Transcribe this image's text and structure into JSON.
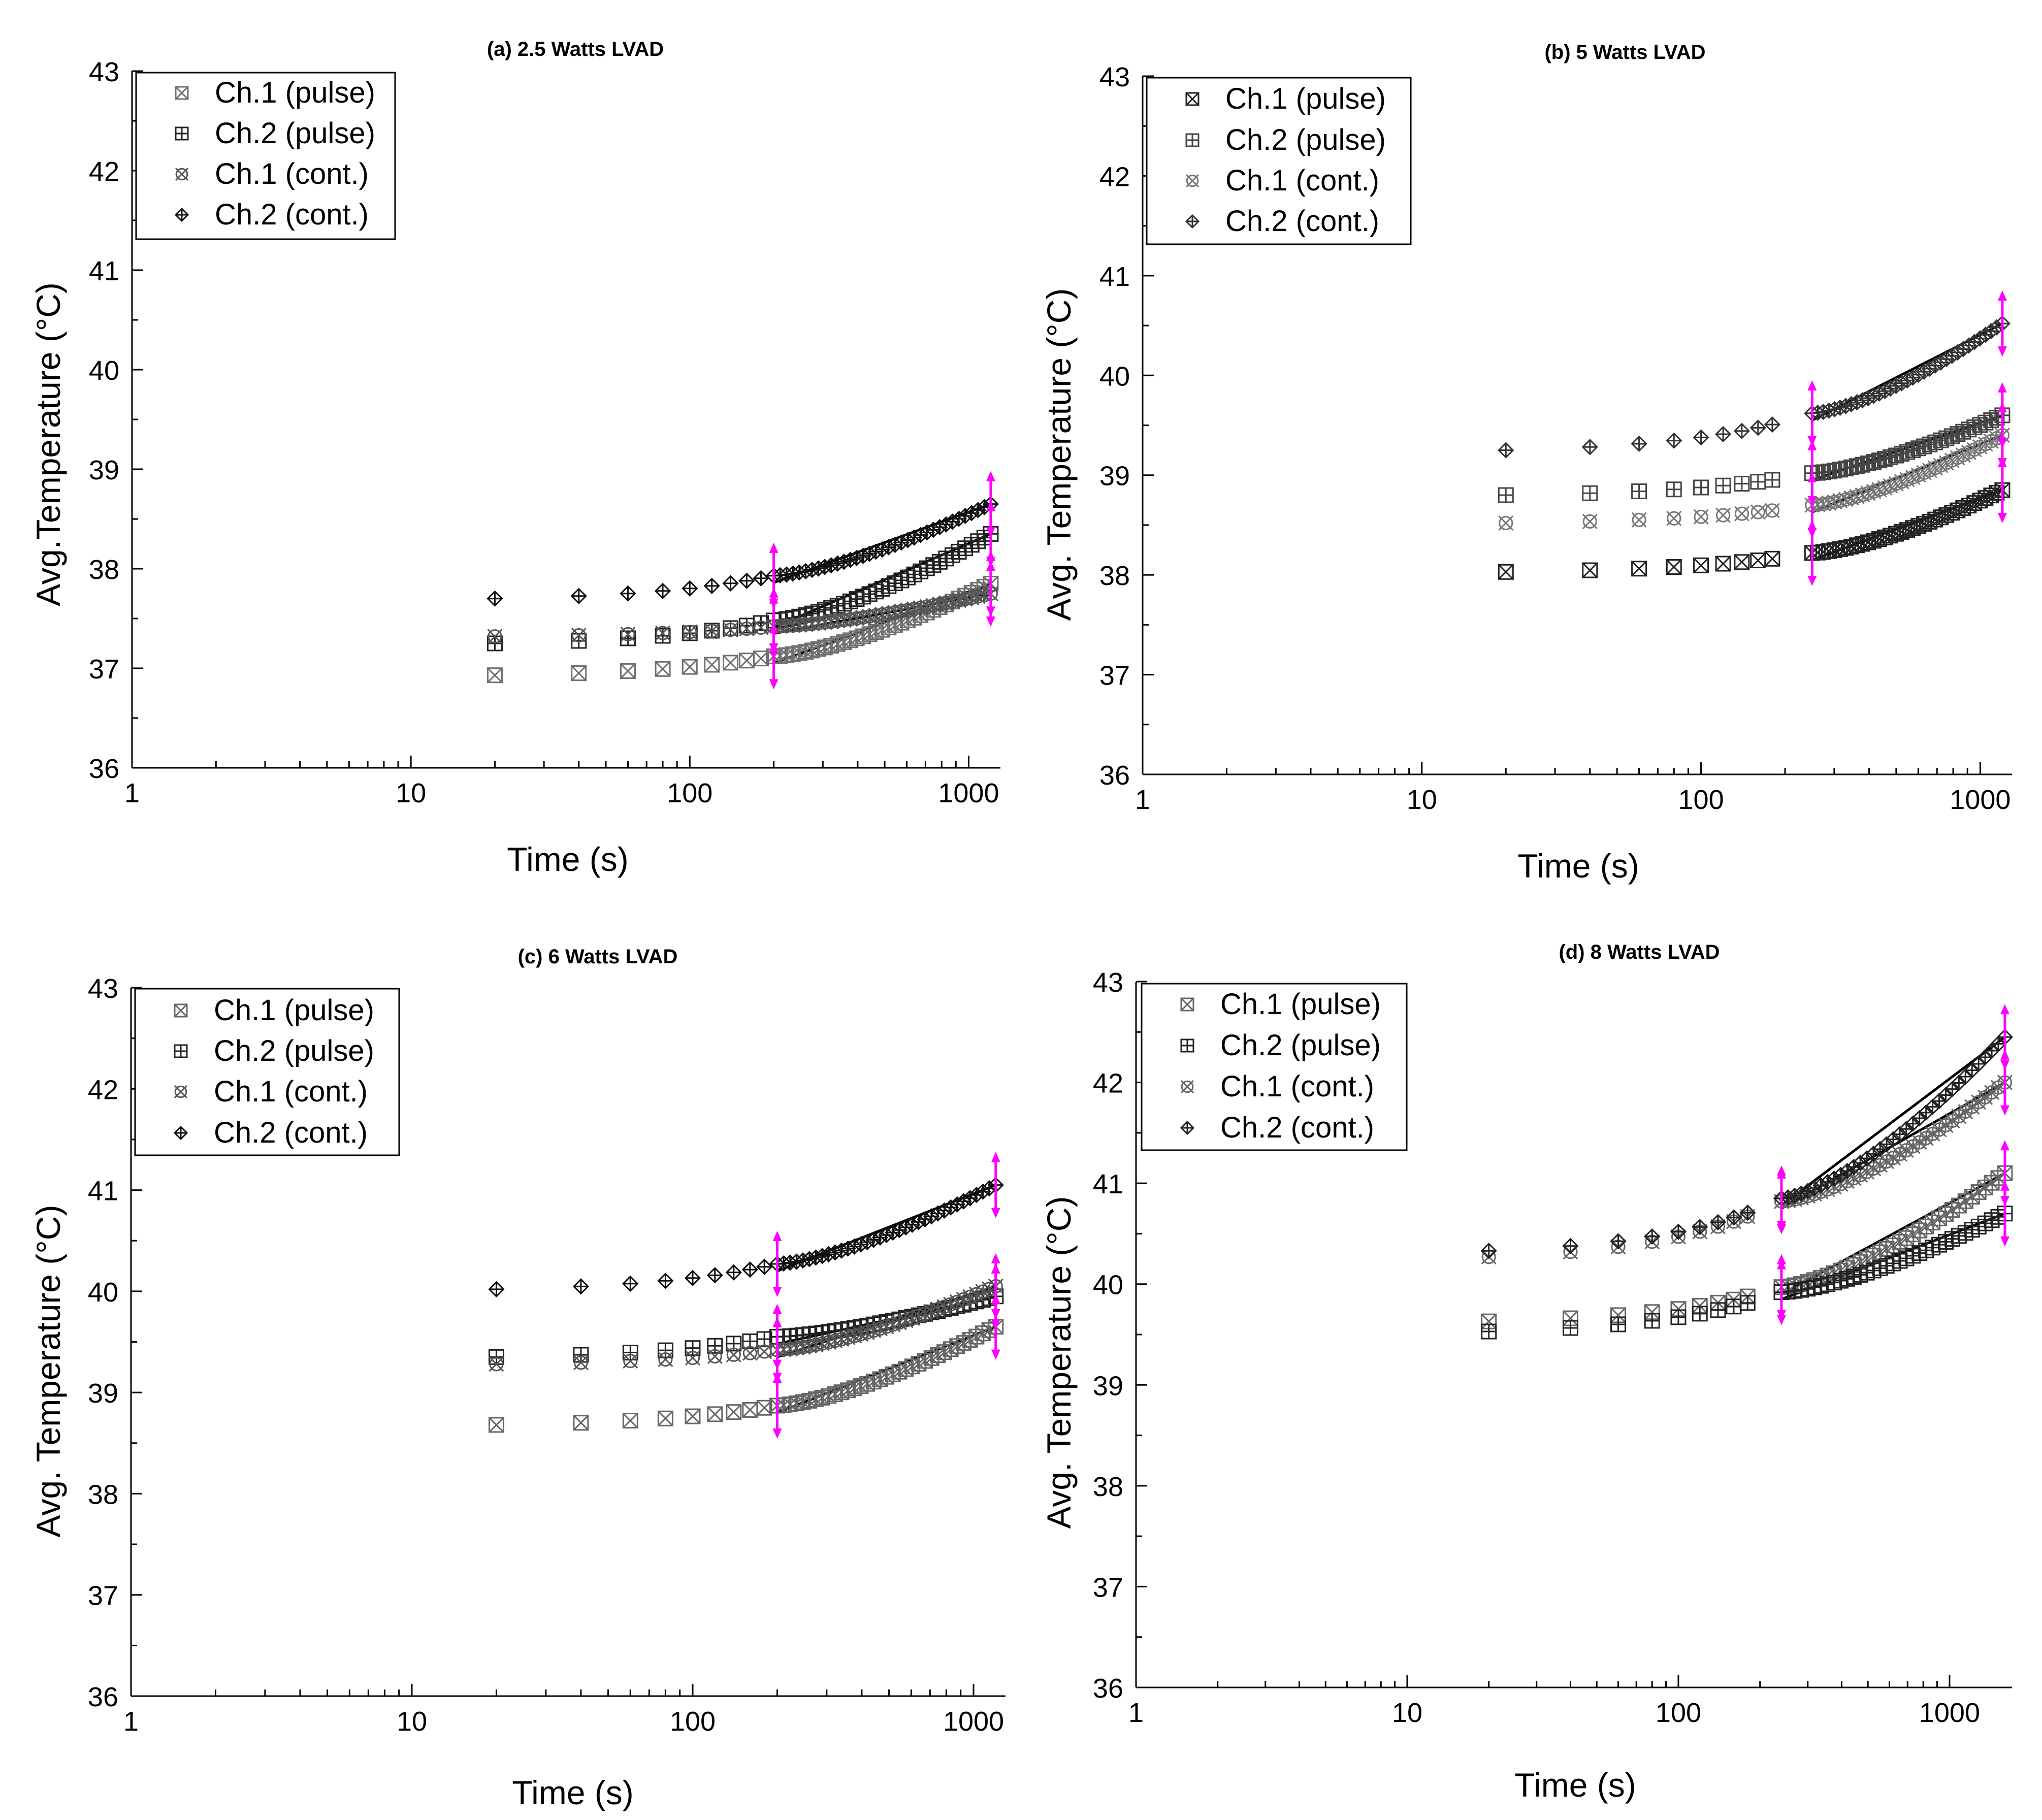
{
  "figure": {
    "panels": [
      {
        "id": "a",
        "title": "(a) 2.5 Watts LVAD"
      },
      {
        "id": "b",
        "title": "(b) 5 Watts LVAD"
      },
      {
        "id": "c",
        "title": "(c) 6 Watts LVAD"
      },
      {
        "id": "d",
        "title": "(d) 8 Watts LVAD"
      }
    ]
  },
  "chart_data": [
    {
      "type": "scatter",
      "title": "(a) 2.5 Watts LVAD",
      "xlabel": "Time (s)",
      "ylabel": "Avg.Temperature (°C)",
      "xscale": "log",
      "xlim": [
        1,
        1300
      ],
      "ylim": [
        36,
        43
      ],
      "xticks": [
        1,
        10,
        100,
        1000
      ],
      "yticks": [
        36,
        37,
        38,
        39,
        40,
        41,
        42,
        43
      ],
      "legend_position": "top-left",
      "legend": [
        "Ch.1 (pulse)",
        "Ch.2 (pulse)",
        "Ch.1 (cont.)",
        "Ch.2 (cont.)"
      ],
      "marker_colors": {
        "pulse_ch1": "#707070",
        "pulse_ch2": "#222222",
        "cont_ch1": "#555555",
        "cont_ch2": "#111111"
      },
      "range_marker_color": "#ff00ff",
      "range_x": [
        200,
        1200
      ],
      "fit_lines": true,
      "series": [
        {
          "name": "Ch.1 (pulse)",
          "marker": "square-x",
          "start": 36.93,
          "end": 37.85,
          "breakpoint": 37.12
        },
        {
          "name": "Ch.2 (pulse)",
          "marker": "square-plus",
          "start": 37.25,
          "end": 38.35,
          "breakpoint": 37.48
        },
        {
          "name": "Ch.1 (cont.)",
          "marker": "circle-x",
          "start": 37.32,
          "end": 37.75,
          "breakpoint": 37.42
        },
        {
          "name": "Ch.2 (cont.)",
          "marker": "diamond-plus",
          "start": 37.7,
          "end": 38.65,
          "breakpoint": 37.93
        }
      ]
    },
    {
      "type": "scatter",
      "title": "(b) 5 Watts LVAD",
      "xlabel": "Time (s)",
      "ylabel": "Avg. Temperature (°C)",
      "xscale": "log",
      "xlim": [
        1,
        1300
      ],
      "ylim": [
        36,
        43
      ],
      "xticks": [
        1,
        10,
        100,
        1000
      ],
      "yticks": [
        36,
        37,
        38,
        39,
        40,
        41,
        42,
        43
      ],
      "legend_position": "top-left",
      "legend": [
        "Ch.1 (pulse)",
        "Ch.2 (pulse)",
        "Ch.1 (cont.)",
        "Ch.2 (cont.)"
      ],
      "marker_colors": {
        "pulse_ch1": "#222222",
        "pulse_ch2": "#444444",
        "cont_ch1": "#777777",
        "cont_ch2": "#333333"
      },
      "range_marker_color": "#ff00ff",
      "range_x": [
        250,
        1200
      ],
      "fit_lines": true,
      "series": [
        {
          "name": "Ch.1 (pulse)",
          "marker": "square-x",
          "start": 38.03,
          "end": 38.85,
          "breakpoint": 38.22
        },
        {
          "name": "Ch.2 (pulse)",
          "marker": "square-plus",
          "start": 38.8,
          "end": 39.6,
          "breakpoint": 39.02
        },
        {
          "name": "Ch.1 (cont.)",
          "marker": "circle-x",
          "start": 38.52,
          "end": 39.4,
          "breakpoint": 38.7
        },
        {
          "name": "Ch.2 (cont.)",
          "marker": "diamond-plus",
          "start": 39.25,
          "end": 40.52,
          "breakpoint": 39.62
        }
      ]
    },
    {
      "type": "scatter",
      "title": "(c) 6 Watts LVAD",
      "xlabel": "Time (s)",
      "ylabel": "Avg. Temperature (°C)",
      "xscale": "log",
      "xlim": [
        1,
        1300
      ],
      "ylim": [
        36,
        43
      ],
      "xticks": [
        1,
        10,
        100,
        1000
      ],
      "yticks": [
        36,
        37,
        38,
        39,
        40,
        41,
        42,
        43
      ],
      "legend_position": "top-left",
      "legend": [
        "Ch.1 (pulse)",
        "Ch.2 (pulse)",
        "Ch.1 (cont.)",
        "Ch.2 (cont.)"
      ],
      "marker_colors": {
        "pulse_ch1": "#666666",
        "pulse_ch2": "#222222",
        "cont_ch1": "#555555",
        "cont_ch2": "#111111"
      },
      "range_marker_color": "#ff00ff",
      "range_x": [
        200,
        1200
      ],
      "fit_lines": true,
      "series": [
        {
          "name": "Ch.1 (pulse)",
          "marker": "square-x",
          "start": 38.68,
          "end": 39.65,
          "breakpoint": 38.87
        },
        {
          "name": "Ch.2 (pulse)",
          "marker": "square-plus",
          "start": 39.35,
          "end": 39.95,
          "breakpoint": 39.55
        },
        {
          "name": "Ch.1 (cont.)",
          "marker": "circle-x",
          "start": 39.28,
          "end": 40.05,
          "breakpoint": 39.42
        },
        {
          "name": "Ch.2 (cont.)",
          "marker": "diamond-plus",
          "start": 40.02,
          "end": 41.05,
          "breakpoint": 40.27
        }
      ]
    },
    {
      "type": "scatter",
      "title": "(d) 8 Watts LVAD",
      "xlabel": "Time (s)",
      "ylabel": "Avg. Temperature (°C)",
      "xscale": "log",
      "xlim": [
        1,
        1700
      ],
      "ylim": [
        36,
        43
      ],
      "xticks": [
        1,
        10,
        100,
        1000
      ],
      "yticks": [
        36,
        37,
        38,
        39,
        40,
        41,
        42,
        43
      ],
      "legend_position": "top-left",
      "legend": [
        "Ch.1 (pulse)",
        "Ch.2 (pulse)",
        "Ch.1 (cont.)",
        "Ch.2 (cont.)"
      ],
      "marker_colors": {
        "pulse_ch1": "#666666",
        "pulse_ch2": "#222222",
        "cont_ch1": "#666666",
        "cont_ch2": "#222222"
      },
      "range_marker_color": "#ff00ff",
      "range_x": [
        240,
        1600
      ],
      "fit_lines": true,
      "series": [
        {
          "name": "Ch.1 (pulse)",
          "marker": "square-x",
          "start": 39.63,
          "end": 41.1,
          "breakpoint": 39.97
        },
        {
          "name": "Ch.2 (pulse)",
          "marker": "square-plus",
          "start": 39.53,
          "end": 40.7,
          "breakpoint": 39.92
        },
        {
          "name": "Ch.1 (cont.)",
          "marker": "circle-x",
          "start": 40.27,
          "end": 42.0,
          "breakpoint": 40.82
        },
        {
          "name": "Ch.2 (cont.)",
          "marker": "diamond-plus",
          "start": 40.33,
          "end": 42.45,
          "breakpoint": 40.85
        }
      ]
    }
  ]
}
